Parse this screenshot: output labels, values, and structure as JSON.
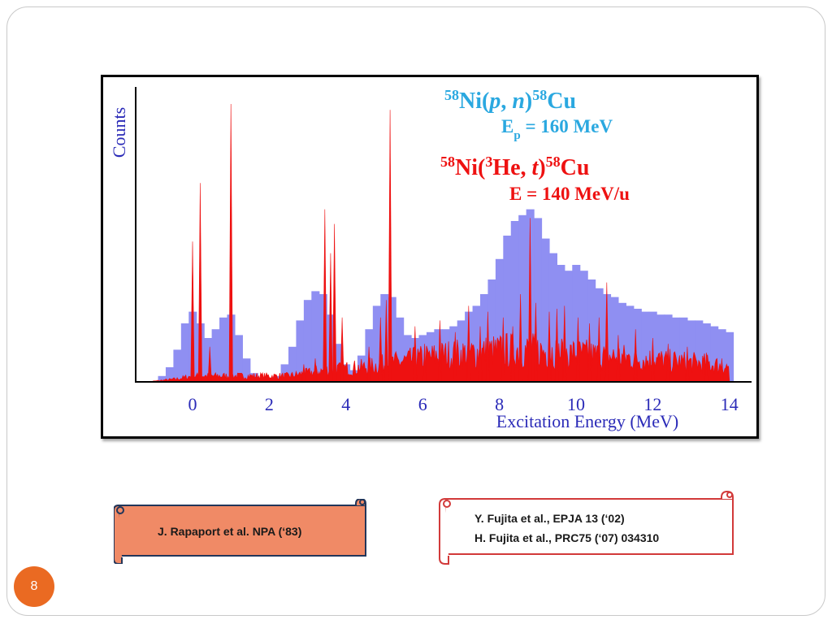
{
  "slide": {
    "page_number": "8",
    "references": {
      "left": "J. Rapaport et al. NPA (‘83)",
      "right_lines": [
        "Y. Fujita et al., EPJA 13 (‘02)",
        "H. Fujita et al., PRC75 (‘07) 034310"
      ]
    },
    "colors": {
      "blue_series": "#8f8ff2",
      "red_series": "#ee1111",
      "title_blue": "#2aa8e0",
      "axis_label_blue": "#2b2bb8",
      "badge": "#ea6a22"
    }
  },
  "chart_data": {
    "type": "area",
    "ylabel": "Counts",
    "xlabel": "Excitation Energy (MeV)",
    "xlim": [
      -1.5,
      14.5
    ],
    "ylim": [
      0,
      1
    ],
    "xticks": [
      "0",
      "2",
      "4",
      "6",
      "8",
      "10",
      "12",
      "14"
    ],
    "y_tick_labels": false,
    "grid": false,
    "legend_position": "top-right",
    "annotations": [
      {
        "parts": [
          [
            "sup",
            "58"
          ],
          [
            "n",
            "Ni("
          ],
          [
            "i",
            "p"
          ],
          [
            "n",
            ", "
          ],
          [
            "i",
            "n"
          ],
          [
            "n",
            ")"
          ],
          [
            "sup",
            "58"
          ],
          [
            "n",
            "Cu"
          ]
        ],
        "color": "#2aa8e0"
      },
      {
        "parts": [
          [
            "n",
            "E"
          ],
          [
            "sub",
            "p"
          ],
          [
            "n",
            " = 160 MeV"
          ]
        ],
        "color": "#2aa8e0"
      },
      {
        "parts": [
          [
            "sup",
            "58"
          ],
          [
            "n",
            "Ni("
          ],
          [
            "sup",
            "3"
          ],
          [
            "n",
            "He, "
          ],
          [
            "i",
            "t"
          ],
          [
            "n",
            ")"
          ],
          [
            "sup",
            "58"
          ],
          [
            "n",
            "Cu"
          ]
        ],
        "color": "#ee1111"
      },
      {
        "parts": [
          [
            "n",
            "E = 140 MeV/u"
          ]
        ],
        "color": "#ee1111"
      }
    ],
    "series": [
      {
        "name": "58Ni(p, n)58Cu, Ep = 160 MeV",
        "style": "histogram",
        "color": "#8f8ff2",
        "x": [
          -0.8,
          -0.6,
          -0.4,
          -0.2,
          0.0,
          0.2,
          0.4,
          0.6,
          0.8,
          1.0,
          1.2,
          1.4,
          1.6,
          1.8,
          2.0,
          2.2,
          2.4,
          2.6,
          2.8,
          3.0,
          3.2,
          3.4,
          3.6,
          3.8,
          4.0,
          4.2,
          4.4,
          4.6,
          4.8,
          5.0,
          5.2,
          5.4,
          5.6,
          5.8,
          6.0,
          6.2,
          6.4,
          6.6,
          6.8,
          7.0,
          7.2,
          7.4,
          7.6,
          7.8,
          8.0,
          8.2,
          8.4,
          8.6,
          8.8,
          9.0,
          9.2,
          9.4,
          9.6,
          9.8,
          10.0,
          10.2,
          10.4,
          10.6,
          10.8,
          11.0,
          11.2,
          11.4,
          11.6,
          11.8,
          12.0,
          12.2,
          12.4,
          12.6,
          12.8,
          13.0,
          13.2,
          13.4,
          13.6,
          13.8,
          14.0
        ],
        "values": [
          0.02,
          0.05,
          0.11,
          0.2,
          0.24,
          0.2,
          0.15,
          0.18,
          0.22,
          0.23,
          0.16,
          0.08,
          0.03,
          0.01,
          0.01,
          0.02,
          0.06,
          0.12,
          0.21,
          0.28,
          0.31,
          0.3,
          0.23,
          0.13,
          0.06,
          0.04,
          0.09,
          0.18,
          0.26,
          0.3,
          0.29,
          0.22,
          0.16,
          0.15,
          0.16,
          0.17,
          0.18,
          0.18,
          0.19,
          0.21,
          0.24,
          0.26,
          0.3,
          0.35,
          0.42,
          0.5,
          0.55,
          0.57,
          0.59,
          0.56,
          0.49,
          0.44,
          0.4,
          0.38,
          0.4,
          0.38,
          0.35,
          0.32,
          0.3,
          0.29,
          0.27,
          0.26,
          0.25,
          0.24,
          0.24,
          0.23,
          0.23,
          0.22,
          0.22,
          0.21,
          0.21,
          0.2,
          0.19,
          0.18,
          0.17
        ]
      },
      {
        "name": "58Ni(3He, t)58Cu, E = 140 MeV/u",
        "style": "spikes",
        "color": "#ee1111",
        "baseline": [
          [
            -1.2,
            0.0
          ],
          [
            -0.4,
            0.01
          ],
          [
            0.0,
            0.02
          ],
          [
            1.0,
            0.02
          ],
          [
            2.5,
            0.02
          ],
          [
            3.5,
            0.04
          ],
          [
            4.5,
            0.05
          ],
          [
            5.5,
            0.07
          ],
          [
            6.5,
            0.09
          ],
          [
            7.5,
            0.1
          ],
          [
            8.5,
            0.11
          ],
          [
            9.5,
            0.1
          ],
          [
            10.5,
            0.09
          ],
          [
            11.5,
            0.08
          ],
          [
            12.5,
            0.07
          ],
          [
            13.5,
            0.06
          ],
          [
            14.0,
            0.05
          ]
        ],
        "x": [
          0.0,
          0.2,
          1.0,
          3.45,
          3.6,
          3.7,
          5.15,
          5.05,
          4.9,
          3.2,
          3.9,
          0.45,
          2.9,
          4.6,
          5.8,
          6.05,
          6.45,
          6.85,
          7.2,
          7.5,
          7.7,
          8.1,
          8.35,
          8.55,
          8.8,
          8.95,
          9.3,
          9.5,
          9.7,
          10.05,
          10.35,
          10.6,
          10.8,
          11.1,
          11.55,
          12.0,
          12.4,
          12.9,
          13.4,
          13.8
        ],
        "values": [
          0.48,
          0.68,
          0.95,
          0.59,
          0.44,
          0.54,
          0.93,
          0.28,
          0.22,
          0.08,
          0.22,
          0.12,
          0.06,
          0.12,
          0.19,
          0.13,
          0.21,
          0.17,
          0.26,
          0.19,
          0.24,
          0.22,
          0.19,
          0.3,
          0.56,
          0.27,
          0.24,
          0.25,
          0.26,
          0.22,
          0.2,
          0.22,
          0.34,
          0.16,
          0.18,
          0.15,
          0.13,
          0.12,
          0.1,
          0.08
        ]
      }
    ]
  }
}
